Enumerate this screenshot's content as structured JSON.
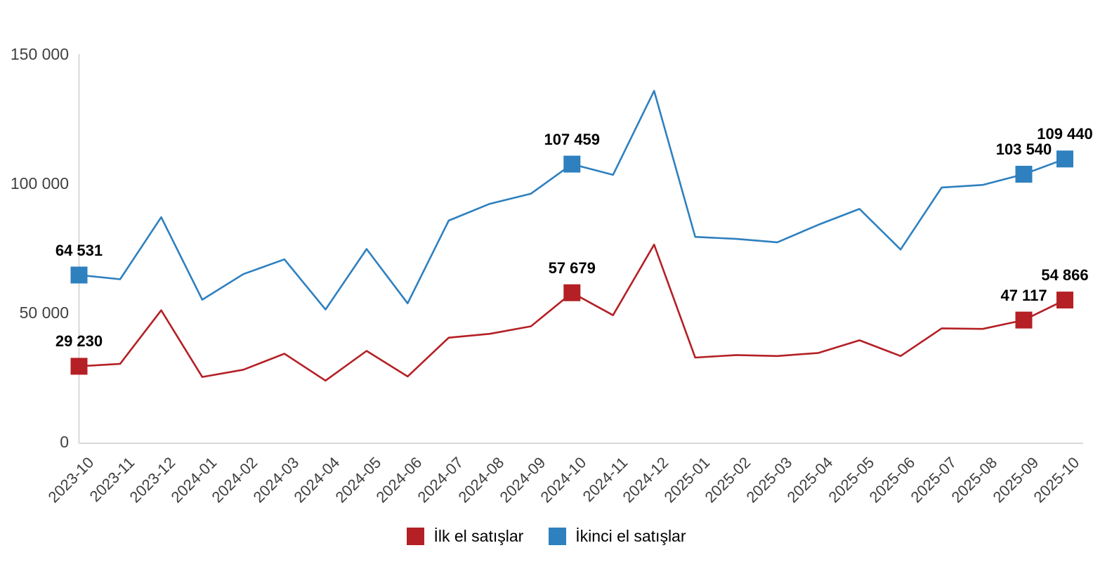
{
  "chart_data": {
    "type": "line",
    "x": [
      "2023-10",
      "2023-11",
      "2023-12",
      "2024-01",
      "2024-02",
      "2024-03",
      "2024-04",
      "2024-05",
      "2024-06",
      "2024-07",
      "2024-08",
      "2024-09",
      "2024-10",
      "2024-11",
      "2024-12",
      "2025-01",
      "2025-02",
      "2025-03",
      "2025-04",
      "2025-05",
      "2025-06",
      "2025-07",
      "2025-08",
      "2025-09",
      "2025-10"
    ],
    "series": [
      {
        "name": "İlk el satışlar",
        "color": "#b42025",
        "values": [
          29230,
          30200,
          50900,
          25100,
          27900,
          34100,
          23700,
          35200,
          25300,
          40300,
          41800,
          44700,
          57679,
          49000,
          76300,
          32600,
          33600,
          33200,
          34400,
          39300,
          33200,
          43900,
          43700,
          47117,
          54866
        ]
      },
      {
        "name": "İkinci el satışlar",
        "color": "#2e80bf",
        "values": [
          64531,
          62900,
          86900,
          55000,
          64900,
          70600,
          51200,
          74600,
          53600,
          85600,
          92100,
          96000,
          107459,
          103300,
          135800,
          79300,
          78500,
          77200,
          84000,
          90100,
          74400,
          98400,
          99400,
          103540,
          109440
        ]
      }
    ],
    "annotations": [
      {
        "series": 0,
        "index": 0,
        "label": "29 230"
      },
      {
        "series": 0,
        "index": 12,
        "label": "57 679"
      },
      {
        "series": 0,
        "index": 23,
        "label": "47 117"
      },
      {
        "series": 0,
        "index": 24,
        "label": "54 866"
      },
      {
        "series": 1,
        "index": 0,
        "label": "64 531"
      },
      {
        "series": 1,
        "index": 12,
        "label": "107 459"
      },
      {
        "series": 1,
        "index": 23,
        "label": "103 540"
      },
      {
        "series": 1,
        "index": 24,
        "label": "109 440"
      }
    ],
    "yticks": [
      {
        "value": 0,
        "label": "0"
      },
      {
        "value": 50000,
        "label": "50 000"
      },
      {
        "value": 100000,
        "label": "100 000"
      },
      {
        "value": 150000,
        "label": "150 000"
      }
    ],
    "ylim": [
      0,
      150000
    ],
    "grid": false,
    "legend_position": "bottom",
    "axis_color": "#d9d9d9",
    "tick_text_color": "#404040"
  }
}
